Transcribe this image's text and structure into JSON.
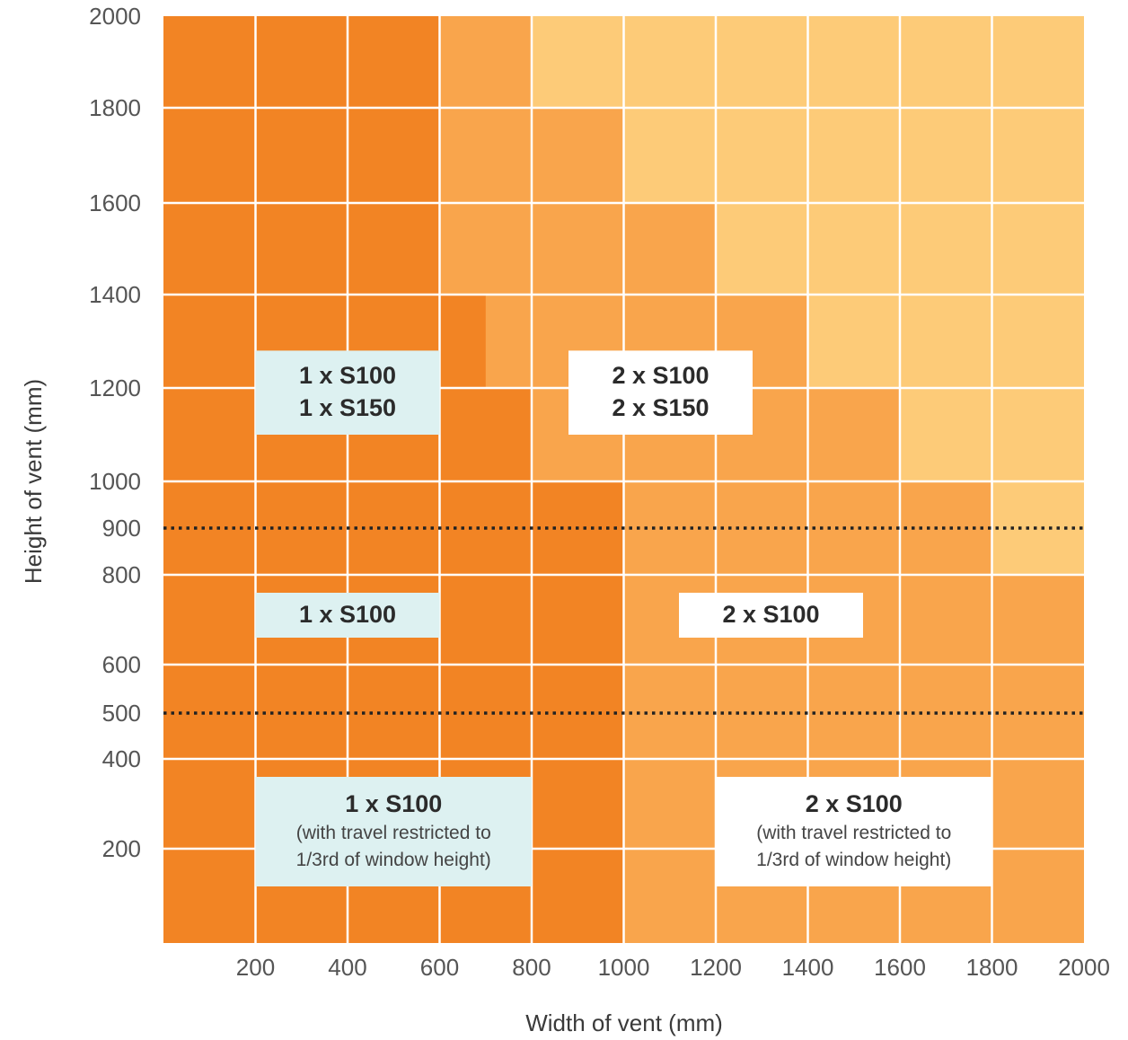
{
  "chart_data": {
    "type": "heatmap",
    "xlabel": "Width of vent (mm)",
    "ylabel": "Height of vent (mm)",
    "xlim": [
      0,
      2000
    ],
    "ylim": [
      0,
      2000
    ],
    "x_ticks": [
      200,
      400,
      600,
      800,
      1000,
      1200,
      1400,
      1600,
      1800,
      2000
    ],
    "y_ticks": [
      200,
      400,
      500,
      600,
      800,
      900,
      1000,
      1200,
      1400,
      1600,
      1800,
      2000
    ],
    "colors": {
      "dark": "#F28424",
      "medium": "#F9A54C",
      "light": "#FDCB78",
      "grid": "#ffffff",
      "box_cyan": "#DDF1F1",
      "box_white": "#ffffff",
      "dotted": "#222222"
    },
    "regions": [
      {
        "level": "medium",
        "polygon": [
          [
            600,
            2000
          ],
          [
            800,
            2000
          ],
          [
            800,
            1800
          ],
          [
            1000,
            1800
          ],
          [
            1000,
            1600
          ],
          [
            1200,
            1600
          ],
          [
            1200,
            1400
          ],
          [
            1400,
            1400
          ],
          [
            1400,
            1200
          ],
          [
            1600,
            1200
          ],
          [
            1600,
            1000
          ],
          [
            1800,
            1000
          ],
          [
            1800,
            800
          ],
          [
            2000,
            800
          ],
          [
            2000,
            0
          ],
          [
            1000,
            0
          ],
          [
            1000,
            1000
          ],
          [
            800,
            1000
          ],
          [
            800,
            1200
          ],
          [
            700,
            1200
          ],
          [
            700,
            1400
          ],
          [
            600,
            1400
          ]
        ]
      },
      {
        "level": "light",
        "polygon": [
          [
            800,
            2000
          ],
          [
            2000,
            2000
          ],
          [
            2000,
            800
          ],
          [
            1800,
            800
          ],
          [
            1800,
            1000
          ],
          [
            1600,
            1000
          ],
          [
            1600,
            1200
          ],
          [
            1400,
            1200
          ],
          [
            1400,
            1400
          ],
          [
            1200,
            1400
          ],
          [
            1200,
            1600
          ],
          [
            1000,
            1600
          ],
          [
            1000,
            1800
          ],
          [
            800,
            1800
          ]
        ]
      }
    ],
    "dotted_lines_y": [
      900,
      500
    ],
    "annotations": [
      {
        "lines": [
          "1 x S100",
          "1 x S150"
        ],
        "note": [],
        "style": "cyan",
        "x": [
          200,
          600
        ],
        "y": [
          1100,
          1280
        ]
      },
      {
        "lines": [
          "2 x S100",
          "2 x S150"
        ],
        "note": [],
        "style": "white",
        "x": [
          880,
          1280
        ],
        "y": [
          1100,
          1280
        ]
      },
      {
        "lines": [
          "1 x S100"
        ],
        "note": [],
        "style": "cyan",
        "x": [
          200,
          600
        ],
        "y": [
          660,
          760
        ]
      },
      {
        "lines": [
          "2 x S100"
        ],
        "note": [],
        "style": "white",
        "x": [
          1120,
          1520
        ],
        "y": [
          660,
          760
        ]
      },
      {
        "lines": [
          "1 x S100"
        ],
        "note": [
          "(with travel restricted to",
          "1/3rd of window height)"
        ],
        "style": "cyan",
        "x": [
          200,
          800
        ],
        "y": [
          120,
          360
        ]
      },
      {
        "lines": [
          "2 x S100"
        ],
        "note": [
          "(with travel restricted to",
          "1/3rd of window height)"
        ],
        "style": "white",
        "x": [
          1200,
          1800
        ],
        "y": [
          120,
          360
        ]
      }
    ]
  }
}
